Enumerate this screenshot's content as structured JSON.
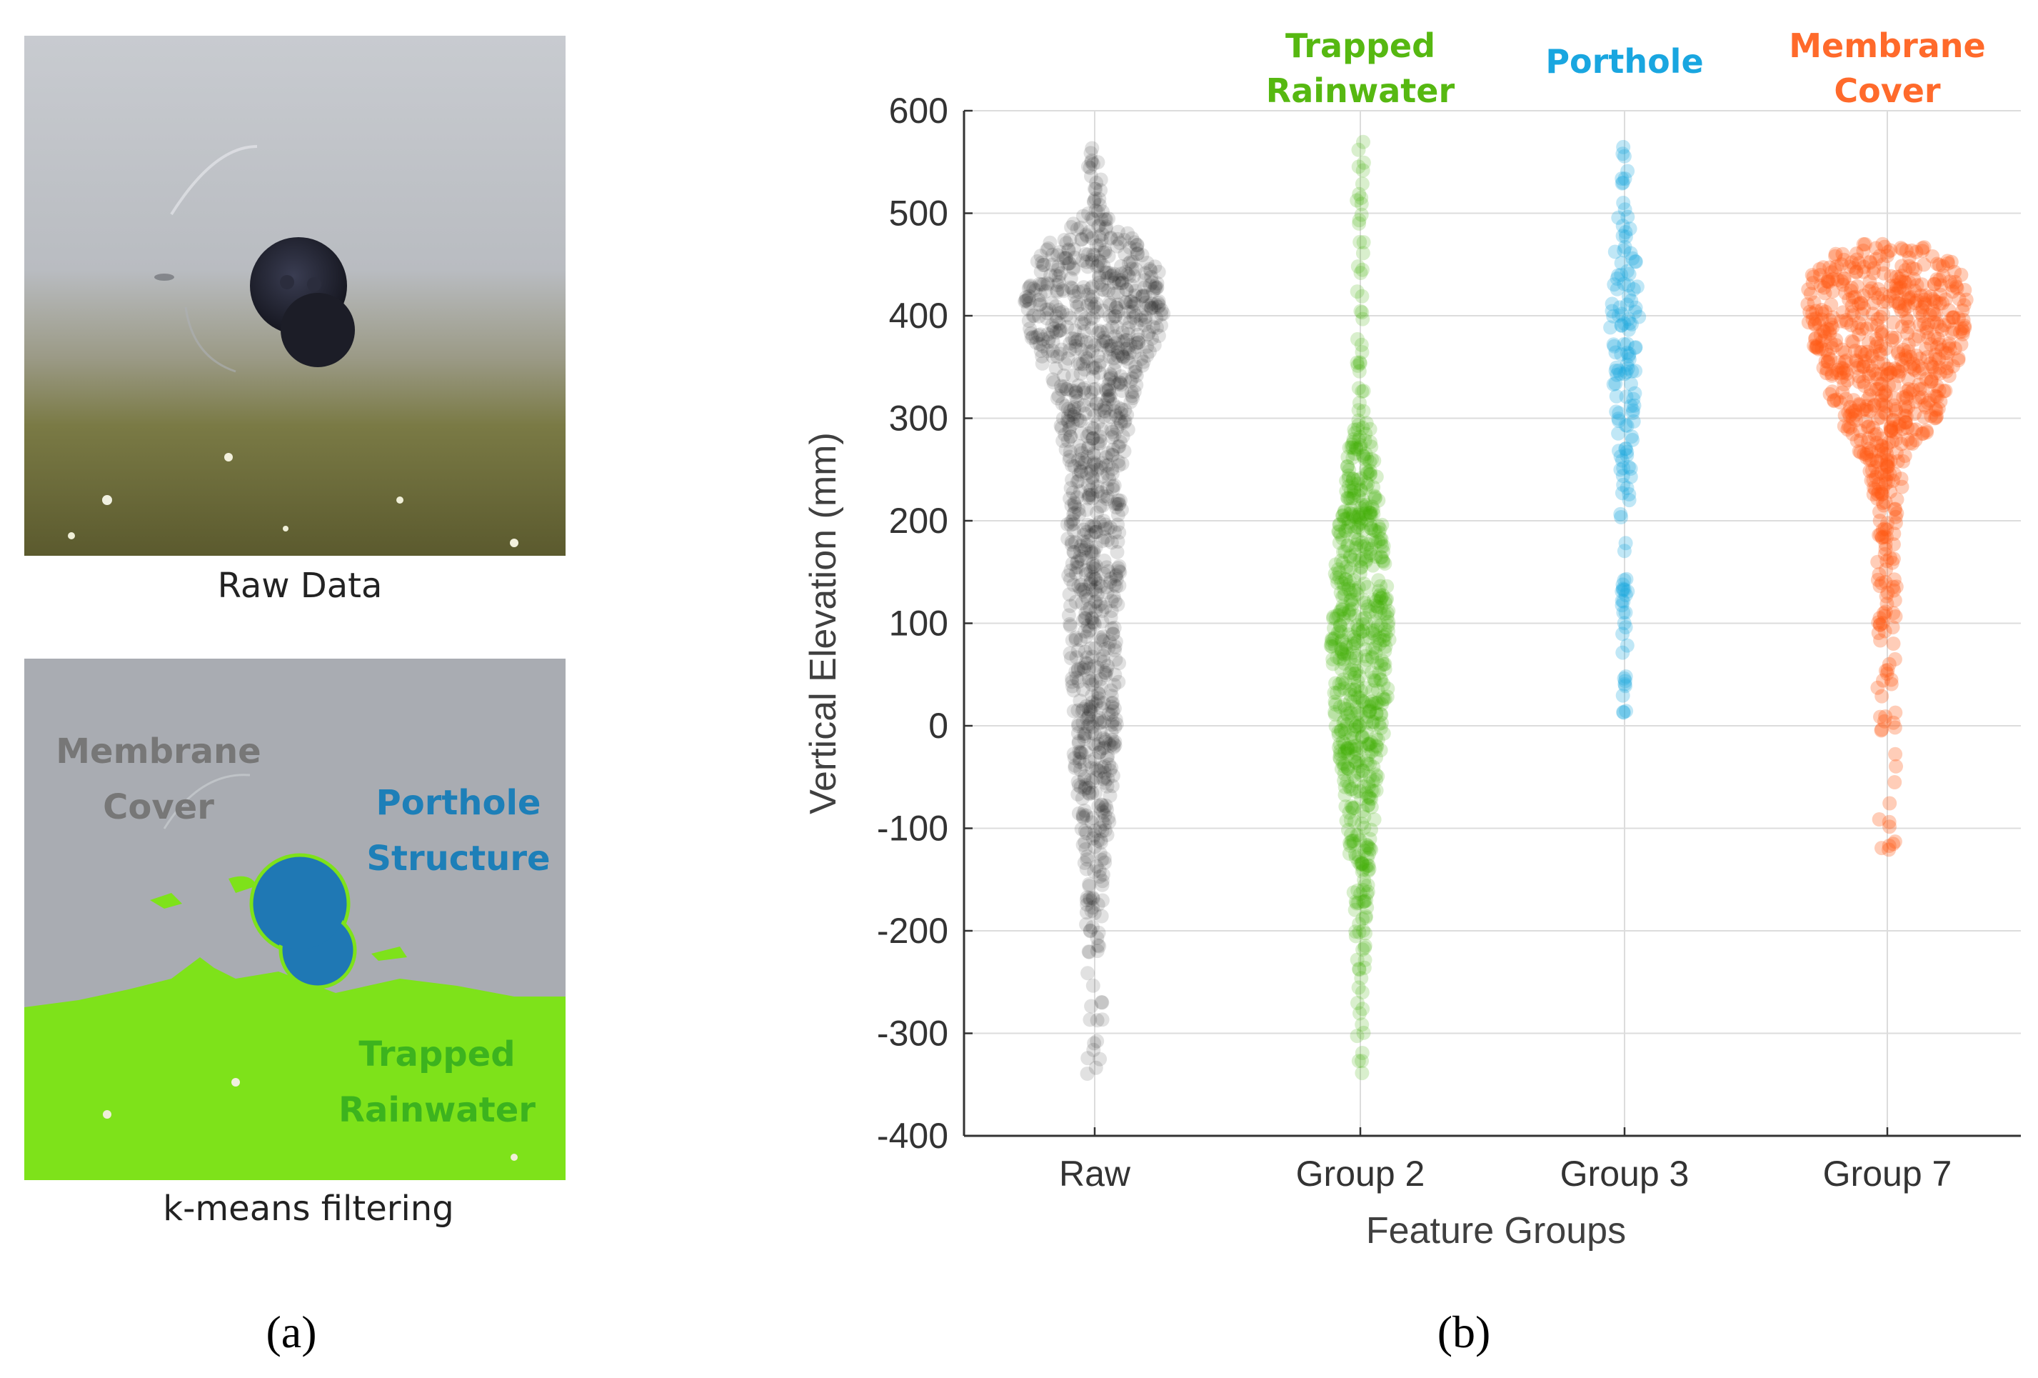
{
  "panel_a": {
    "raw_caption": "Raw Data",
    "kmeans_caption": "k-means filtering",
    "labels": {
      "membrane_line1": "Membrane",
      "membrane_line2": "Cover",
      "porthole_line1": "Porthole",
      "porthole_line2": "Structure",
      "rain_line1": "Trapped",
      "rain_line2": "Rainwater"
    },
    "colors": {
      "membrane_text": "#7a7a7a",
      "porthole_text": "#1d7fb8",
      "rain_text": "#3cb31e",
      "kmeans_green": "#7ee21a",
      "kmeans_blue": "#1f78b4",
      "membrane_gray": "#a9acb2"
    }
  },
  "sublabels": {
    "a": "(a)",
    "b": "(b)"
  },
  "chart_data": {
    "type": "scatter",
    "title": "",
    "xlabel": "Feature Groups",
    "ylabel": "Vertical Elevation (mm)",
    "ylim": [
      -400,
      600
    ],
    "yticks": [
      "600",
      "500",
      "400",
      "300",
      "200",
      "100",
      "0",
      "-100",
      "-200",
      "-300",
      "-400"
    ],
    "grid": true,
    "categories": [
      "Raw",
      "Group 2",
      "Group 3",
      "Group 7"
    ],
    "group_headers": [
      {
        "line1": "",
        "line2": "",
        "color": "#000000"
      },
      {
        "line1": "Trapped",
        "line2": "Rainwater",
        "color": "#56b811"
      },
      {
        "line1": "Porthole",
        "line2": "",
        "color": "#19a6e0"
      },
      {
        "line1": "Membrane",
        "line2": "Cover",
        "color": "#ff6a2b"
      }
    ],
    "series": [
      {
        "name": "Raw",
        "color": "#1a1a1a",
        "opacity": 0.13,
        "count": 1100,
        "y_range": [
          -340,
          570
        ],
        "profile": [
          [
            -340,
            0.03
          ],
          [
            -250,
            0.07
          ],
          [
            -150,
            0.14
          ],
          [
            -50,
            0.28
          ],
          [
            50,
            0.34
          ],
          [
            150,
            0.38
          ],
          [
            250,
            0.4
          ],
          [
            320,
            0.55
          ],
          [
            370,
            0.85
          ],
          [
            400,
            1.0
          ],
          [
            440,
            0.95
          ],
          [
            470,
            0.65
          ],
          [
            500,
            0.12
          ],
          [
            570,
            0.04
          ]
        ],
        "half_width_max": 100
      },
      {
        "name": "Group 2",
        "color": "#3fae07",
        "opacity": 0.2,
        "count": 700,
        "y_range": [
          -340,
          570
        ],
        "profile": [
          [
            -340,
            0.05
          ],
          [
            -250,
            0.12
          ],
          [
            -150,
            0.3
          ],
          [
            -50,
            0.6
          ],
          [
            0,
            0.85
          ],
          [
            80,
            1.0
          ],
          [
            150,
            0.88
          ],
          [
            220,
            0.65
          ],
          [
            290,
            0.35
          ],
          [
            300,
            0.1
          ],
          [
            400,
            0.04
          ],
          [
            470,
            0.05
          ],
          [
            570,
            0.03
          ]
        ],
        "half_width_max": 42
      },
      {
        "name": "Group 3",
        "color": "#1ea8e0",
        "opacity": 0.28,
        "count": 150,
        "y_range": [
          5,
          570
        ],
        "profile": [
          [
            5,
            0.1
          ],
          [
            100,
            0.2
          ],
          [
            200,
            0.28
          ],
          [
            300,
            0.6
          ],
          [
            380,
            0.9
          ],
          [
            430,
            1.0
          ],
          [
            470,
            0.55
          ],
          [
            520,
            0.25
          ],
          [
            570,
            0.1
          ]
        ],
        "half_width_max": 22
      },
      {
        "name": "Group 7",
        "color": "#ff5a14",
        "opacity": 0.3,
        "count": 700,
        "y_range": [
          -125,
          470
        ],
        "profile": [
          [
            -125,
            0.02
          ],
          [
            0,
            0.05
          ],
          [
            100,
            0.08
          ],
          [
            200,
            0.12
          ],
          [
            250,
            0.22
          ],
          [
            300,
            0.6
          ],
          [
            350,
            0.85
          ],
          [
            400,
            1.0
          ],
          [
            440,
            0.95
          ],
          [
            470,
            0.55
          ]
        ],
        "half_width_max": 115
      }
    ]
  }
}
